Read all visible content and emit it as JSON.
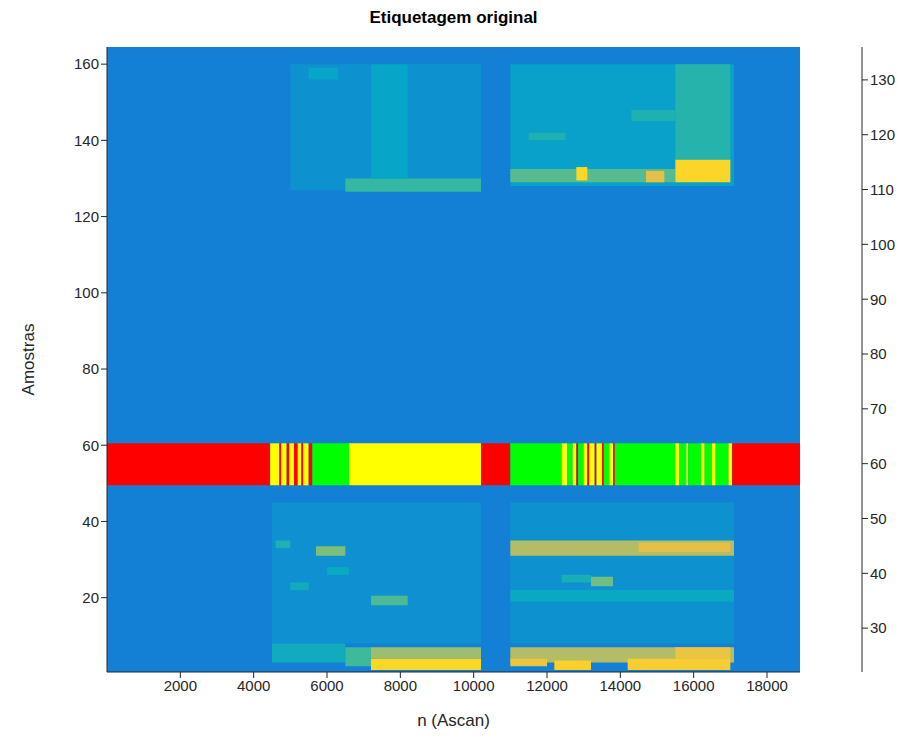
{
  "chart_data": {
    "type": "heatmap",
    "title": "Etiquetagem original",
    "x_label": "n (Ascan)",
    "y_label": "Amostras",
    "xlim": [
      0,
      18900
    ],
    "ylim": [
      0.5,
      164.5
    ],
    "xticks": [
      2000,
      4000,
      6000,
      8000,
      10000,
      12000,
      14000,
      16000,
      18000
    ],
    "yticks": [
      20,
      40,
      60,
      80,
      100,
      120,
      140,
      160
    ],
    "cells": [
      {
        "x": [
          0,
          18900
        ],
        "y": [
          0.5,
          164.5
        ],
        "value": 50
      },
      {
        "x": [
          4500,
          10200
        ],
        "y": [
          8,
          45
        ],
        "value": 56
      },
      {
        "x": [
          11000,
          17100
        ],
        "y": [
          8,
          45
        ],
        "value": 57
      },
      {
        "x": [
          4500,
          6500
        ],
        "y": [
          3,
          8
        ],
        "value": 68
      },
      {
        "x": [
          6500,
          7200
        ],
        "y": [
          2,
          7
        ],
        "value": 80
      },
      {
        "x": [
          7200,
          10200
        ],
        "y": [
          4,
          7
        ],
        "value": 95
      },
      {
        "x": [
          7200,
          10200
        ],
        "y": [
          1,
          4
        ],
        "value": 125
      },
      {
        "x": [
          11000,
          17100
        ],
        "y": [
          3,
          7
        ],
        "value": 100
      },
      {
        "x": [
          11000,
          12000
        ],
        "y": [
          2,
          4
        ],
        "value": 115
      },
      {
        "x": [
          12200,
          13200
        ],
        "y": [
          1,
          3.5
        ],
        "value": 122
      },
      {
        "x": [
          14200,
          17000
        ],
        "y": [
          1,
          4
        ],
        "value": 120
      },
      {
        "x": [
          15500,
          17000
        ],
        "y": [
          4,
          7
        ],
        "value": 115
      },
      {
        "x": [
          4600,
          5000
        ],
        "y": [
          33,
          35
        ],
        "value": 72
      },
      {
        "x": [
          5700,
          6500
        ],
        "y": [
          31,
          33.5
        ],
        "value": 90
      },
      {
        "x": [
          11000,
          17100
        ],
        "y": [
          31,
          35
        ],
        "value": 100
      },
      {
        "x": [
          14500,
          17000
        ],
        "y": [
          32,
          34.5
        ],
        "value": 112
      },
      {
        "x": [
          5000,
          5500
        ],
        "y": [
          22,
          24
        ],
        "value": 68
      },
      {
        "x": [
          6000,
          6600
        ],
        "y": [
          26,
          28
        ],
        "value": 66
      },
      {
        "x": [
          7200,
          8200
        ],
        "y": [
          18,
          20.5
        ],
        "value": 82
      },
      {
        "x": [
          11000,
          17100
        ],
        "y": [
          19,
          22
        ],
        "value": 66
      },
      {
        "x": [
          13200,
          13800
        ],
        "y": [
          23,
          25.5
        ],
        "value": 88
      },
      {
        "x": [
          12400,
          13200
        ],
        "y": [
          24,
          26
        ],
        "value": 70
      },
      {
        "x": [
          5000,
          10200
        ],
        "y": [
          127,
          160
        ],
        "value": 57
      },
      {
        "x": [
          11000,
          17100
        ],
        "y": [
          128,
          160
        ],
        "value": 62
      },
      {
        "x": [
          6500,
          10200
        ],
        "y": [
          126.5,
          130
        ],
        "value": 78
      },
      {
        "x": [
          7200,
          8200
        ],
        "y": [
          130,
          160
        ],
        "value": 64
      },
      {
        "x": [
          11000,
          15500
        ],
        "y": [
          129,
          132.5
        ],
        "value": 84
      },
      {
        "x": [
          12800,
          13100
        ],
        "y": [
          129.5,
          133
        ],
        "value": 125
      },
      {
        "x": [
          14700,
          15200
        ],
        "y": [
          129,
          132
        ],
        "value": 112
      },
      {
        "x": [
          15500,
          17000
        ],
        "y": [
          129,
          135
        ],
        "value": 124
      },
      {
        "x": [
          15500,
          17000
        ],
        "y": [
          135,
          160
        ],
        "value": 74
      },
      {
        "x": [
          11500,
          12500
        ],
        "y": [
          140,
          142
        ],
        "value": 72
      },
      {
        "x": [
          14300,
          15500
        ],
        "y": [
          145,
          148
        ],
        "value": 72
      },
      {
        "x": [
          5500,
          6300
        ],
        "y": [
          156,
          159
        ],
        "value": 64
      }
    ],
    "label_strip": {
      "y": [
        49.5,
        60.5
      ],
      "segments": [
        {
          "x": [
            0,
            4450
          ],
          "color": "#ff0000"
        },
        {
          "x": [
            4450,
            4700
          ],
          "color": "#ffff00"
        },
        {
          "x": [
            4700,
            4750
          ],
          "color": "#ff0000"
        },
        {
          "x": [
            4750,
            4900
          ],
          "color": "#ffff00"
        },
        {
          "x": [
            4900,
            4970
          ],
          "color": "#ff0000"
        },
        {
          "x": [
            4970,
            5100
          ],
          "color": "#ffff00"
        },
        {
          "x": [
            5100,
            5200
          ],
          "color": "#ff0000"
        },
        {
          "x": [
            5200,
            5300
          ],
          "color": "#ffff00"
        },
        {
          "x": [
            5300,
            5350
          ],
          "color": "#ff0000"
        },
        {
          "x": [
            5350,
            5500
          ],
          "color": "#ffff00"
        },
        {
          "x": [
            5500,
            5600
          ],
          "color": "#ff0000"
        },
        {
          "x": [
            5600,
            6600
          ],
          "color": "#00ff00"
        },
        {
          "x": [
            6600,
            10200
          ],
          "color": "#ffff00"
        },
        {
          "x": [
            10200,
            11000
          ],
          "color": "#ff0000"
        },
        {
          "x": [
            11000,
            12400
          ],
          "color": "#00ff00"
        },
        {
          "x": [
            12400,
            12550
          ],
          "color": "#ffff00"
        },
        {
          "x": [
            12550,
            12700
          ],
          "color": "#00ff00"
        },
        {
          "x": [
            12700,
            12800
          ],
          "color": "#ffff00"
        },
        {
          "x": [
            12800,
            12850
          ],
          "color": "#ff0000"
        },
        {
          "x": [
            12850,
            13000
          ],
          "color": "#00ff00"
        },
        {
          "x": [
            13000,
            13100
          ],
          "color": "#ffff00"
        },
        {
          "x": [
            13100,
            13150
          ],
          "color": "#ff0000"
        },
        {
          "x": [
            13150,
            13300
          ],
          "color": "#ffff00"
        },
        {
          "x": [
            13300,
            13350
          ],
          "color": "#ff0000"
        },
        {
          "x": [
            13350,
            13500
          ],
          "color": "#ffff00"
        },
        {
          "x": [
            13500,
            13550
          ],
          "color": "#ff0000"
        },
        {
          "x": [
            13550,
            13700
          ],
          "color": "#00ff00"
        },
        {
          "x": [
            13700,
            13800
          ],
          "color": "#ffff00"
        },
        {
          "x": [
            13800,
            13850
          ],
          "color": "#ff0000"
        },
        {
          "x": [
            13850,
            15500
          ],
          "color": "#00ff00"
        },
        {
          "x": [
            15500,
            15600
          ],
          "color": "#ffff00"
        },
        {
          "x": [
            15600,
            15800
          ],
          "color": "#00ff00"
        },
        {
          "x": [
            15800,
            15850
          ],
          "color": "#ffff00"
        },
        {
          "x": [
            15850,
            16200
          ],
          "color": "#00ff00"
        },
        {
          "x": [
            16200,
            16300
          ],
          "color": "#ffff00"
        },
        {
          "x": [
            16300,
            16500
          ],
          "color": "#00ff00"
        },
        {
          "x": [
            16500,
            16600
          ],
          "color": "#ffff00"
        },
        {
          "x": [
            16600,
            16950
          ],
          "color": "#00ff00"
        },
        {
          "x": [
            16950,
            17050
          ],
          "color": "#ffff00"
        },
        {
          "x": [
            17050,
            18900
          ],
          "color": "#ff0000"
        }
      ]
    },
    "colorbar": {
      "range": [
        22,
        136
      ],
      "ticks": [
        30,
        40,
        50,
        60,
        70,
        80,
        90,
        100,
        110,
        120,
        130
      ]
    }
  }
}
